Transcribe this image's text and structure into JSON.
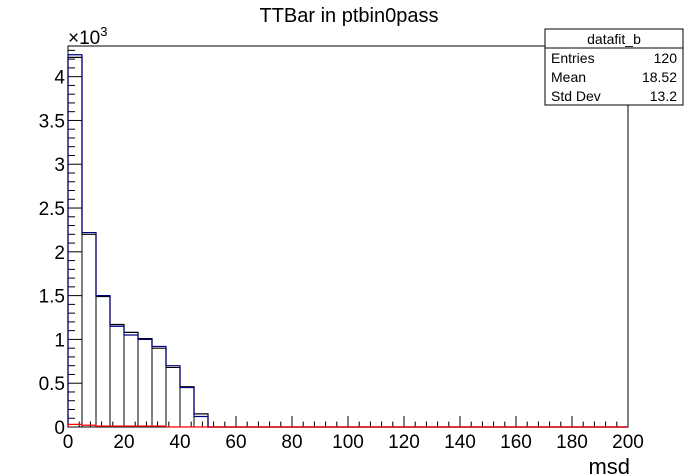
{
  "chart_data": {
    "type": "histogram",
    "title": "TTBar in ptbin0pass",
    "xlabel": "msd",
    "ylabel": "",
    "y_multiplier": "×10",
    "y_multiplier_exponent": "3",
    "xlim": [
      0,
      200
    ],
    "ylim": [
      0,
      4.35
    ],
    "bin_width": 5,
    "x_ticks": [
      "0",
      "20",
      "40",
      "60",
      "80",
      "100",
      "120",
      "140",
      "160",
      "180",
      "200"
    ],
    "y_ticks": [
      "0",
      "0.5",
      "1",
      "1.5",
      "2",
      "2.5",
      "3",
      "3.5",
      "4"
    ],
    "series": [
      {
        "color": "#000000",
        "bins": [
          0,
          5,
          10,
          15,
          20,
          25,
          30,
          35,
          40,
          45,
          50
        ],
        "values": [
          4.22,
          2.2,
          1.49,
          1.17,
          1.08,
          1.01,
          0.9,
          0.68,
          0.46,
          0.15,
          0.0
        ]
      },
      {
        "color": "#000080",
        "bins": [
          0,
          5,
          10,
          15,
          20,
          25,
          30,
          35,
          40,
          45,
          50
        ],
        "values": [
          4.25,
          2.22,
          1.5,
          1.15,
          1.05,
          1.0,
          0.92,
          0.7,
          0.45,
          0.12,
          0.0
        ]
      },
      {
        "color": "#ff0000",
        "bins": [
          0,
          5,
          10,
          15,
          20,
          25,
          30,
          35,
          40,
          45,
          50
        ],
        "values": [
          0.03,
          0.02,
          0.01,
          0.01,
          0.01,
          0.01,
          0.01,
          0.0,
          0.0,
          0.0,
          0.0
        ]
      }
    ],
    "stats_box": {
      "name": "datafit_b",
      "rows": [
        {
          "label": "Entries",
          "value": "120"
        },
        {
          "label": "Mean",
          "value": "18.52"
        },
        {
          "label": "Std Dev",
          "value": "13.2"
        }
      ]
    }
  }
}
